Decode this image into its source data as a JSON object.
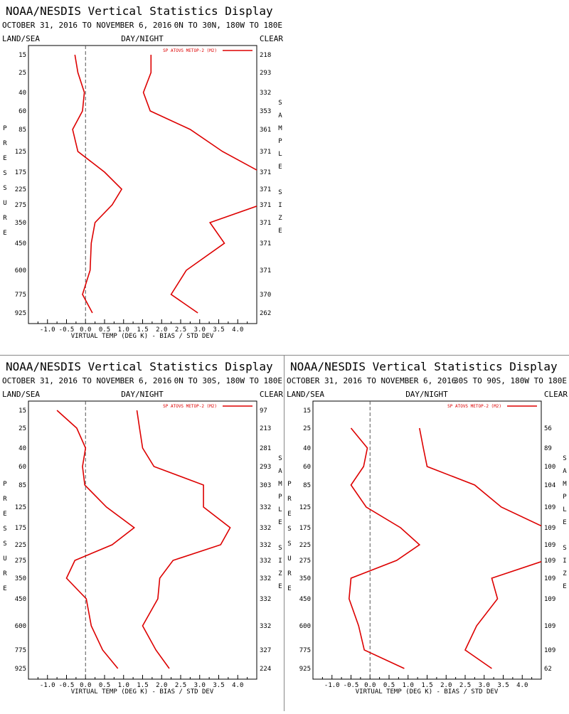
{
  "chart_data": [
    {
      "type": "line",
      "title": "NOAA/NESDIS Vertical Statistics Display",
      "date_range": "OCTOBER 31, 2016 TO NOVEMBER 6, 2016",
      "region": "0N TO 30N, 180W TO 180E",
      "filter_left": "LAND/SEA",
      "filter_mid": "DAY/NIGHT",
      "filter_right": "CLEAR",
      "legend": "SP ATOVS METOP-2 (M2)",
      "xlabel": "VIRTUAL TEMP (DEG K) - BIAS / STD DEV",
      "ylabel": "PRESSURE",
      "y2label": "SAMPLE SIZE",
      "xlim": [
        -1.5,
        4.5
      ],
      "x_ticks": [
        "-1.0",
        "-0.5",
        "0.0",
        "0.5",
        "1.0",
        "1.5",
        "2.0",
        "2.5",
        "3.0",
        "3.5",
        "4.0"
      ],
      "pressure_levels": [
        15,
        25,
        40,
        60,
        85,
        125,
        175,
        225,
        275,
        350,
        450,
        600,
        775,
        925
      ],
      "pressure_tick_labels": [
        "15",
        "25",
        "40",
        "60",
        "85",
        "125",
        "175",
        "225",
        "275",
        "350",
        "450",
        "600",
        "775",
        "925"
      ],
      "sample_size": [
        "218",
        "293",
        "332",
        "353",
        "361",
        "371",
        "371",
        "371",
        "371",
        "371",
        "371",
        "371",
        "370",
        "262"
      ],
      "series": [
        {
          "role": "bias",
          "values": [
            -0.28,
            -0.2,
            -0.03,
            -0.08,
            -0.34,
            -0.2,
            0.5,
            0.95,
            0.7,
            0.25,
            0.15,
            0.12,
            -0.08,
            0.18
          ]
        },
        {
          "role": "std_dev",
          "values": [
            1.72,
            1.72,
            1.52,
            1.7,
            2.75,
            3.6,
            4.6,
            4.6,
            4.6,
            3.27,
            3.65,
            2.65,
            2.25,
            2.95
          ]
        }
      ],
      "color": "#dd0000"
    },
    {
      "type": "line",
      "title": "NOAA/NESDIS Vertical Statistics Display",
      "date_range": "OCTOBER 31, 2016 TO NOVEMBER 6, 2016",
      "region": "0N TO 30S, 180W TO 180E",
      "filter_left": "LAND/SEA",
      "filter_mid": "DAY/NIGHT",
      "filter_right": "CLEAR",
      "legend": "SP ATOVS METOP-2 (M2)",
      "xlabel": "VIRTUAL TEMP (DEG K) - BIAS / STD DEV",
      "ylabel": "PRESSURE",
      "y2label": "SAMPLE SIZE",
      "xlim": [
        -1.5,
        4.5
      ],
      "x_ticks": [
        "-1.0",
        "-0.5",
        "0.0",
        "0.5",
        "1.0",
        "1.5",
        "2.0",
        "2.5",
        "3.0",
        "3.5",
        "4.0"
      ],
      "pressure_levels": [
        15,
        25,
        40,
        60,
        85,
        125,
        175,
        225,
        275,
        350,
        450,
        600,
        775,
        925
      ],
      "pressure_tick_labels": [
        "15",
        "25",
        "40",
        "60",
        "85",
        "125",
        "175",
        "225",
        "275",
        "350",
        "450",
        "600",
        "775",
        "925"
      ],
      "sample_size": [
        "97",
        "213",
        "281",
        "293",
        "303",
        "332",
        "332",
        "332",
        "332",
        "332",
        "332",
        "332",
        "327",
        "224"
      ],
      "series": [
        {
          "role": "bias",
          "values": [
            -0.75,
            -0.23,
            0.0,
            -0.08,
            -0.02,
            0.55,
            1.28,
            0.7,
            -0.28,
            -0.5,
            0.02,
            0.15,
            0.45,
            0.85
          ]
        },
        {
          "role": "std_dev",
          "values": [
            1.35,
            1.42,
            1.5,
            1.8,
            3.1,
            3.1,
            3.8,
            3.55,
            2.3,
            1.95,
            1.9,
            1.5,
            1.85,
            2.2
          ]
        }
      ],
      "color": "#dd0000"
    },
    {
      "type": "line",
      "title": "NOAA/NESDIS Vertical Statistics Display",
      "date_range": "OCTOBER 31, 2016 TO NOVEMBER 6, 2016",
      "region": "30S TO 90S, 180W TO 180E",
      "filter_left": "LAND/SEA",
      "filter_mid": "DAY/NIGHT",
      "filter_right": "CLEAR",
      "legend": "SP ATOVS METOP-2 (M2)",
      "xlabel": "VIRTUAL TEMP (DEG K) - BIAS / STD DEV",
      "ylabel": "PRESSURE",
      "y2label": "SAMPLE SIZE",
      "xlim": [
        -1.5,
        4.5
      ],
      "x_ticks": [
        "-1.0",
        "-0.5",
        "0.0",
        "0.5",
        "1.0",
        "1.5",
        "2.0",
        "2.5",
        "3.0",
        "3.5",
        "4.0"
      ],
      "pressure_levels": [
        25,
        40,
        60,
        85,
        125,
        175,
        225,
        275,
        350,
        450,
        600,
        775,
        925
      ],
      "pressure_tick_labels": [
        "15",
        "25",
        "40",
        "60",
        "85",
        "125",
        "175",
        "225",
        "275",
        "350",
        "450",
        "600",
        "775",
        "925"
      ],
      "sample_size": [
        "",
        "56",
        "89",
        "100",
        "104",
        "109",
        "109",
        "109",
        "109",
        "109",
        "109",
        "109",
        "109",
        "62"
      ],
      "series": [
        {
          "role": "bias",
          "values": [
            -0.5,
            -0.07,
            -0.17,
            -0.5,
            -0.1,
            0.8,
            1.3,
            0.7,
            -0.5,
            -0.55,
            -0.3,
            -0.15,
            0.9
          ]
        },
        {
          "role": "std_dev",
          "values": [
            1.3,
            1.4,
            1.5,
            2.75,
            3.45,
            4.6,
            4.6,
            4.6,
            3.2,
            3.35,
            2.8,
            2.5,
            3.2
          ]
        }
      ],
      "color": "#dd0000"
    }
  ]
}
